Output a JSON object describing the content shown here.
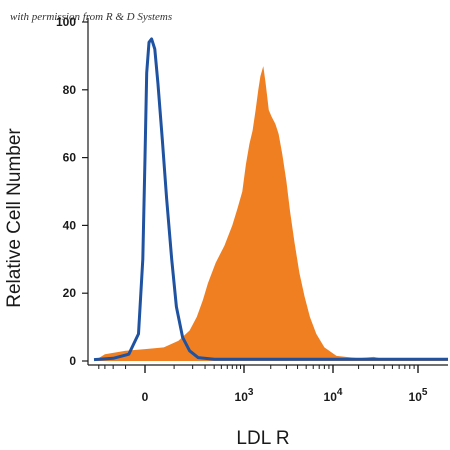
{
  "watermark": "with permission from R & D Systems",
  "chart_data": {
    "type": "area",
    "title": "",
    "xlabel": "LDL R",
    "ylabel": "Relative Cell Number",
    "xscale": "biexponential",
    "xlim": [
      -500,
      150000
    ],
    "ylim": [
      0,
      100
    ],
    "grid": false,
    "legend": "none",
    "y_ticks": [
      0,
      20,
      40,
      60,
      80,
      100
    ],
    "x_ticks": [
      {
        "value": 0,
        "base": "0",
        "exp": ""
      },
      {
        "value": 1000,
        "base": "10",
        "exp": "3"
      },
      {
        "value": 10000,
        "base": "10",
        "exp": "4"
      },
      {
        "value": 100000,
        "base": "10",
        "exp": "5"
      }
    ],
    "series": [
      {
        "style": "outline",
        "color": "#1f52a0",
        "points": [
          [
            -500,
            0.4
          ],
          [
            -200,
            0.8
          ],
          [
            -80,
            2
          ],
          [
            -30,
            8
          ],
          [
            -10,
            30
          ],
          [
            0,
            60
          ],
          [
            5,
            85
          ],
          [
            12,
            94
          ],
          [
            20,
            95
          ],
          [
            30,
            92
          ],
          [
            40,
            82
          ],
          [
            55,
            65
          ],
          [
            70,
            48
          ],
          [
            90,
            30
          ],
          [
            110,
            16
          ],
          [
            140,
            7
          ],
          [
            180,
            3
          ],
          [
            240,
            1
          ],
          [
            400,
            0.5
          ],
          [
            150000,
            0.5
          ]
        ]
      },
      {
        "style": "filled",
        "color": "#f07f22",
        "points": [
          [
            -500,
            0
          ],
          [
            -300,
            2
          ],
          [
            -100,
            3
          ],
          [
            0,
            3.5
          ],
          [
            60,
            4
          ],
          [
            120,
            6
          ],
          [
            180,
            9
          ],
          [
            230,
            13
          ],
          [
            280,
            18
          ],
          [
            330,
            23
          ],
          [
            420,
            29
          ],
          [
            550,
            34
          ],
          [
            700,
            40
          ],
          [
            820,
            45
          ],
          [
            950,
            50
          ],
          [
            1050,
            58
          ],
          [
            1150,
            64
          ],
          [
            1250,
            68
          ],
          [
            1350,
            74
          ],
          [
            1450,
            80
          ],
          [
            1530,
            84
          ],
          [
            1650,
            87
          ],
          [
            1750,
            82
          ],
          [
            1900,
            74
          ],
          [
            2050,
            72
          ],
          [
            2250,
            70
          ],
          [
            2450,
            67
          ],
          [
            2700,
            61
          ],
          [
            3000,
            53
          ],
          [
            3300,
            44
          ],
          [
            3700,
            35
          ],
          [
            4200,
            26
          ],
          [
            4800,
            19
          ],
          [
            5500,
            13
          ],
          [
            6500,
            8
          ],
          [
            8000,
            4
          ],
          [
            11000,
            1.5
          ],
          [
            20000,
            0.8
          ],
          [
            30000,
            1.2
          ],
          [
            40000,
            0.6
          ],
          [
            150000,
            0.5
          ]
        ]
      }
    ]
  }
}
